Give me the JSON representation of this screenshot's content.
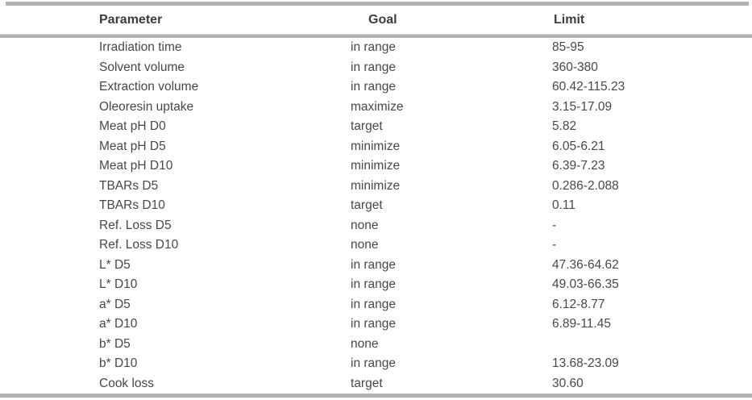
{
  "page": {
    "background_color": "#ffffff",
    "rule_color": "#b2b2b2",
    "text_color": "#484848"
  },
  "table": {
    "columns": [
      "Parameter",
      "Goal",
      "Limit"
    ],
    "rows": [
      {
        "parameter": "Irradiation time",
        "goal": "in range",
        "limit": "85-95"
      },
      {
        "parameter": "Solvent volume",
        "goal": "in range",
        "limit": "360-380"
      },
      {
        "parameter": "Extraction volume",
        "goal": "in range",
        "limit": "60.42-115.23"
      },
      {
        "parameter": "Oleoresin uptake",
        "goal": "maximize",
        "limit": "3.15-17.09"
      },
      {
        "parameter": "Meat pH D0",
        "goal": "target",
        "limit": "5.82"
      },
      {
        "parameter": "Meat pH D5",
        "goal": "minimize",
        "limit": "6.05-6.21"
      },
      {
        "parameter": "Meat pH D10",
        "goal": "minimize",
        "limit": "6.39-7.23"
      },
      {
        "parameter": "TBARs D5",
        "goal": "minimize",
        "limit": "0.286-2.088"
      },
      {
        "parameter": "TBARs D10",
        "goal": "target",
        "limit": "0.11"
      },
      {
        "parameter": "Ref. Loss D5",
        "goal": "none",
        "limit": "-"
      },
      {
        "parameter": "Ref. Loss D10",
        "goal": "none",
        "limit": "-"
      },
      {
        "parameter": "L* D5",
        "goal": "in range",
        "limit": "47.36-64.62"
      },
      {
        "parameter": "L* D10",
        "goal": "in range",
        "limit": "49.03-66.35"
      },
      {
        "parameter": "a* D5",
        "goal": "in range",
        "limit": "6.12-8.77"
      },
      {
        "parameter": "a* D10",
        "goal": "in range",
        "limit": "6.89-11.45"
      },
      {
        "parameter": "b* D5",
        "goal": "none",
        "limit": ""
      },
      {
        "parameter": "b* D10",
        "goal": "in range",
        "limit": "13.68-23.09"
      },
      {
        "parameter": "Cook loss",
        "goal": "target",
        "limit": "30.60"
      }
    ]
  }
}
